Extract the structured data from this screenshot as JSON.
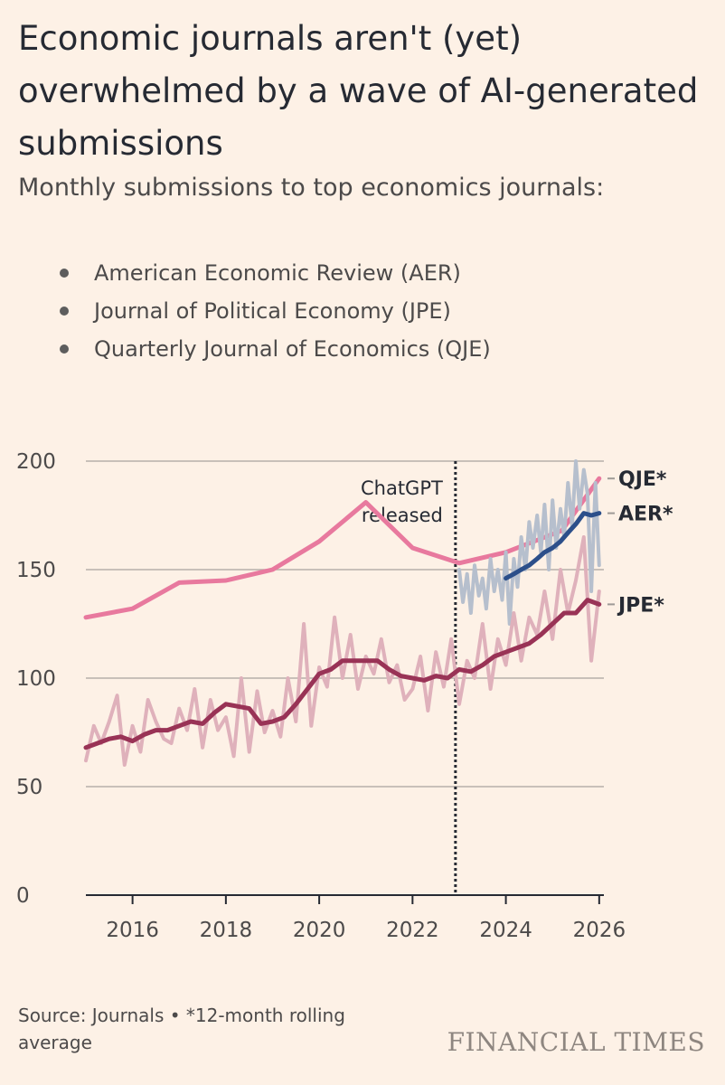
{
  "title": "Economic journals aren't (yet) overwhelmed by a wave of AI-generated submissions",
  "subtitle": "Monthly submissions to top economics journals:",
  "legend": [
    {
      "label": "American Economic Review (AER)"
    },
    {
      "label": "Journal of Political Economy (JPE)"
    },
    {
      "label": "Quarterly Journal of Economics (QJE)"
    }
  ],
  "source": "Source: Journals • *12-month rolling average",
  "logo": "FINANCIAL TIMES",
  "colors": {
    "qje": "#e8799e",
    "aer_raw": "#b6bfcd",
    "aer_avg": "#2c4f8a",
    "jpe_raw": "#dfb1bb",
    "jpe_avg": "#993356",
    "grid": "#b7b0aa",
    "axis": "#262a33"
  },
  "chart_data": {
    "type": "line",
    "x_ticks": [
      2016,
      2018,
      2020,
      2022,
      2024,
      2026
    ],
    "y_ticks": [
      0,
      50,
      100,
      150,
      200
    ],
    "xlim": [
      2015,
      2026.1
    ],
    "ylim": [
      0,
      200
    ],
    "annotation": {
      "lines": [
        "ChatGPT",
        "released"
      ],
      "x": 2022.92
    },
    "end_labels": {
      "qje": "QJE*",
      "aer": "AER*",
      "jpe": "JPE*"
    },
    "series": [
      {
        "name": "Quarterly Journal of Economics (QJE)",
        "kind": "annual",
        "x": [
          2015,
          2016,
          2017,
          2018,
          2019,
          2020,
          2021,
          2022,
          2023,
          2024,
          2025.2,
          2026
        ],
        "y": [
          128,
          132,
          144,
          145,
          150,
          163,
          181,
          160,
          153,
          158,
          168,
          192
        ]
      },
      {
        "name": "AER monthly",
        "kind": "raw",
        "x": [
          2023.0,
          2023.08,
          2023.17,
          2023.25,
          2023.33,
          2023.42,
          2023.5,
          2023.58,
          2023.67,
          2023.75,
          2023.83,
          2023.92,
          2024.0,
          2024.08,
          2024.17,
          2024.25,
          2024.33,
          2024.42,
          2024.5,
          2024.58,
          2024.67,
          2024.75,
          2024.83,
          2024.92,
          2025.0,
          2025.08,
          2025.17,
          2025.25,
          2025.33,
          2025.42,
          2025.5,
          2025.58,
          2025.67,
          2025.75,
          2025.83,
          2025.92,
          2026.0
        ],
        "y": [
          150,
          135,
          148,
          130,
          152,
          138,
          146,
          132,
          155,
          140,
          150,
          136,
          158,
          125,
          155,
          142,
          165,
          150,
          172,
          160,
          175,
          158,
          180,
          150,
          182,
          160,
          178,
          165,
          190,
          170,
          200,
          178,
          196,
          185,
          140,
          190,
          152
        ]
      },
      {
        "name": "AER*",
        "kind": "avg",
        "x": [
          2024.0,
          2024.17,
          2024.33,
          2024.5,
          2024.67,
          2024.83,
          2025.0,
          2025.17,
          2025.33,
          2025.5,
          2025.67,
          2025.83,
          2026.0
        ],
        "y": [
          146,
          148,
          150,
          152,
          155,
          158,
          160,
          163,
          167,
          171,
          176,
          175,
          176
        ]
      },
      {
        "name": "JPE monthly",
        "kind": "raw",
        "x": [
          2015.0,
          2015.17,
          2015.33,
          2015.5,
          2015.67,
          2015.83,
          2016.0,
          2016.17,
          2016.33,
          2016.5,
          2016.67,
          2016.83,
          2017.0,
          2017.17,
          2017.33,
          2017.5,
          2017.67,
          2017.83,
          2018.0,
          2018.17,
          2018.33,
          2018.5,
          2018.67,
          2018.83,
          2019.0,
          2019.17,
          2019.33,
          2019.5,
          2019.67,
          2019.83,
          2020.0,
          2020.17,
          2020.33,
          2020.5,
          2020.67,
          2020.83,
          2021.0,
          2021.17,
          2021.33,
          2021.5,
          2021.67,
          2021.83,
          2022.0,
          2022.17,
          2022.33,
          2022.5,
          2022.67,
          2022.83,
          2023.0,
          2023.17,
          2023.33,
          2023.5,
          2023.67,
          2023.83,
          2024.0,
          2024.17,
          2024.33,
          2024.5,
          2024.67,
          2024.83,
          2025.0,
          2025.17,
          2025.33,
          2025.5,
          2025.67,
          2025.83,
          2026.0
        ],
        "y": [
          62,
          78,
          70,
          80,
          92,
          60,
          78,
          66,
          90,
          80,
          72,
          70,
          86,
          76,
          95,
          68,
          90,
          76,
          82,
          64,
          100,
          66,
          94,
          75,
          85,
          73,
          100,
          80,
          125,
          78,
          105,
          96,
          128,
          100,
          120,
          95,
          110,
          102,
          118,
          98,
          106,
          90,
          95,
          110,
          85,
          112,
          96,
          118,
          88,
          108,
          100,
          125,
          95,
          118,
          106,
          130,
          108,
          128,
          120,
          140,
          118,
          150,
          130,
          145,
          165,
          108,
          140
        ]
      },
      {
        "name": "JPE*",
        "kind": "avg",
        "x": [
          2015.0,
          2015.25,
          2015.5,
          2015.75,
          2016.0,
          2016.25,
          2016.5,
          2016.75,
          2017.0,
          2017.25,
          2017.5,
          2017.75,
          2018.0,
          2018.25,
          2018.5,
          2018.75,
          2019.0,
          2019.25,
          2019.5,
          2019.75,
          2020.0,
          2020.25,
          2020.5,
          2020.75,
          2021.0,
          2021.25,
          2021.5,
          2021.75,
          2022.0,
          2022.25,
          2022.5,
          2022.75,
          2023.0,
          2023.25,
          2023.5,
          2023.75,
          2024.0,
          2024.25,
          2024.5,
          2024.75,
          2025.0,
          2025.25,
          2025.5,
          2025.75,
          2026.0
        ],
        "y": [
          68,
          70,
          72,
          73,
          71,
          74,
          76,
          76,
          78,
          80,
          79,
          84,
          88,
          87,
          86,
          79,
          80,
          82,
          88,
          95,
          102,
          104,
          108,
          108,
          108,
          108,
          104,
          101,
          100,
          99,
          101,
          100,
          104,
          103,
          106,
          110,
          112,
          114,
          116,
          120,
          125,
          130,
          130,
          136,
          134
        ]
      }
    ]
  }
}
